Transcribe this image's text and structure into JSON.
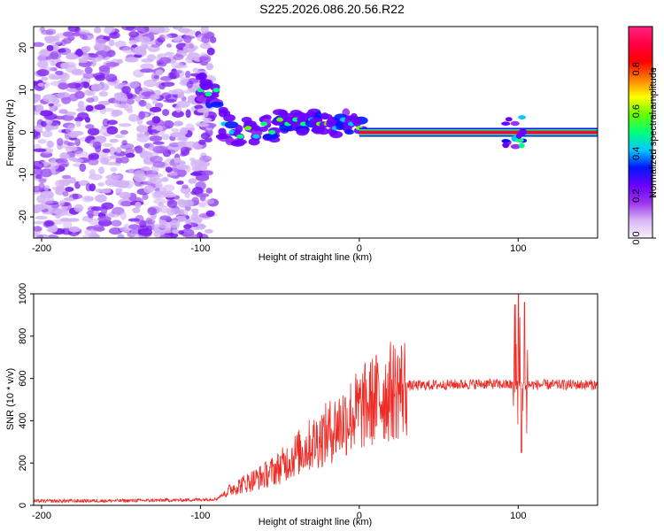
{
  "figure_title": "S225.2026.086.20.56.R22",
  "chart_data": [
    {
      "type": "heatmap",
      "title": "S225.2026.086.20.56.R22",
      "xlabel": "Height of straight line (km)",
      "ylabel": "Frequency (Hz)",
      "xlim": [
        -205,
        150
      ],
      "ylim": [
        -25,
        25
      ],
      "x_ticks": [
        -200,
        -100,
        0,
        100
      ],
      "x_tick_labels": [
        "-200",
        "-100",
        "0",
        "100"
      ],
      "y_ticks": [
        -20,
        -10,
        0,
        10,
        20
      ],
      "y_tick_labels": [
        "-20",
        "-10",
        "0",
        "10",
        "20"
      ],
      "colorbar": {
        "label": "Normalized spectral amplitude",
        "range": [
          0,
          1
        ],
        "ticks": [
          0.0,
          0.2,
          0.4,
          0.6,
          0.8
        ],
        "tick_labels": [
          "0.0",
          "0.2",
          "0.4",
          "0.6",
          "0.8"
        ],
        "colormap": [
          "#f7f0fc",
          "#d9b8f5",
          "#9b33ee",
          "#6a00ff",
          "#0016ff",
          "#00c8ff",
          "#00ff7a",
          "#66ff00",
          "#ffff00",
          "#ff8000",
          "#ff0000",
          "#ff0044",
          "#ff2080"
        ]
      },
      "features": {
        "noise_region_x": [
          -205,
          -100
        ],
        "transition_track": [
          [
            -100,
            10
          ],
          [
            -95,
            9
          ],
          [
            -90,
            10
          ],
          [
            -85,
            2
          ],
          [
            -80,
            0
          ],
          [
            -75,
            -1
          ],
          [
            -70,
            1
          ],
          [
            -65,
            -1
          ],
          [
            -60,
            2
          ],
          [
            -55,
            0
          ],
          [
            -50,
            3
          ],
          [
            -45,
            2
          ],
          [
            -40,
            3
          ],
          [
            -35,
            2
          ],
          [
            -30,
            3
          ],
          [
            -25,
            2
          ],
          [
            -20,
            2
          ],
          [
            -15,
            1
          ],
          [
            -10,
            3
          ],
          [
            -5,
            2
          ],
          [
            0,
            1
          ]
        ],
        "carrier_line": {
          "x": [
            0,
            150
          ],
          "freq": 0,
          "amplitude": 0.95
        },
        "disturbance_x": 100
      }
    },
    {
      "type": "line",
      "xlabel": "Height of straight line (km)",
      "ylabel": "SNR (10 * v/v)",
      "xlim": [
        -205,
        150
      ],
      "ylim": [
        0,
        1000
      ],
      "x_ticks": [
        -200,
        -100,
        0,
        100
      ],
      "x_tick_labels": [
        "-200",
        "-100",
        "0",
        "100"
      ],
      "y_ticks": [
        0,
        200,
        400,
        600,
        800,
        1000
      ],
      "y_tick_labels": [
        "0",
        "200",
        "400",
        "600",
        "800",
        "1000"
      ],
      "series": [
        {
          "name": "SNR",
          "color": "#ee2a24",
          "envelope": [
            [
              -205,
              20
            ],
            [
              -150,
              22
            ],
            [
              -110,
              25
            ],
            [
              -90,
              30
            ],
            [
              -80,
              80
            ],
            [
              -70,
              110
            ],
            [
              -60,
              140
            ],
            [
              -50,
              180
            ],
            [
              -40,
              240
            ],
            [
              -30,
              290
            ],
            [
              -20,
              340
            ],
            [
              -10,
              400
            ],
            [
              0,
              450
            ],
            [
              10,
              500
            ],
            [
              20,
              540
            ],
            [
              30,
              565
            ],
            [
              50,
              570
            ],
            [
              80,
              575
            ],
            [
              95,
              570
            ],
            [
              105,
              570
            ],
            [
              120,
              570
            ],
            [
              150,
              570
            ]
          ],
          "spikes": [
            [
              98,
              950
            ],
            [
              100,
              1000
            ],
            [
              102,
              250
            ],
            [
              104,
              960
            ]
          ]
        }
      ]
    }
  ]
}
